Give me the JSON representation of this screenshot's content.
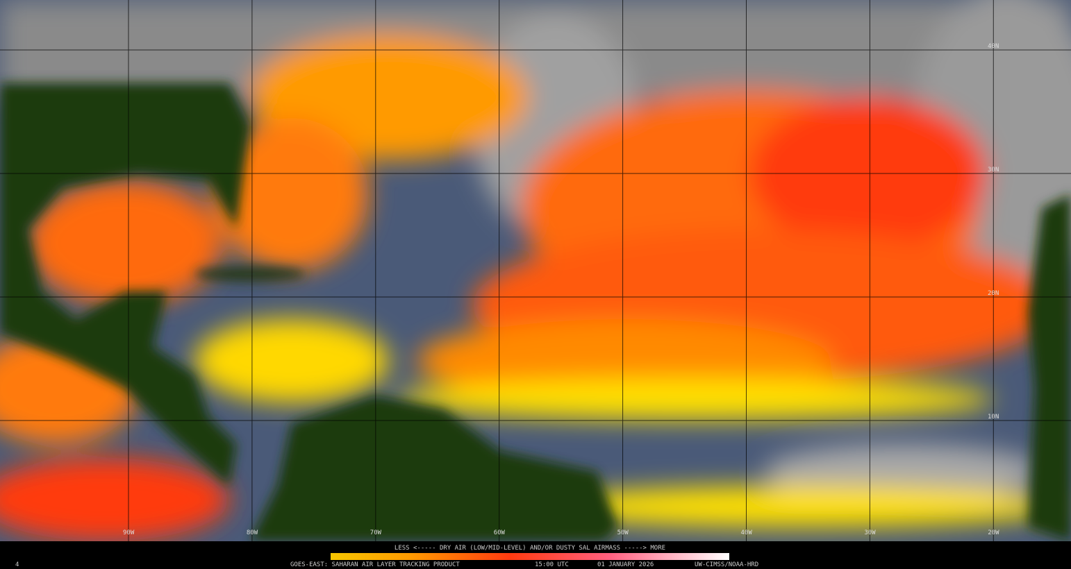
{
  "map": {
    "latitude_labels": [
      "40N",
      "30N",
      "20N",
      "10N"
    ],
    "longitude_labels": [
      "90W",
      "80W",
      "70W",
      "60W",
      "50W",
      "40W",
      "30W",
      "20W"
    ]
  },
  "legend": {
    "caption": "LESS <----- DRY AIR (LOW/MID-LEVEL) AND/OR DUSTY SAL AIRMASS -----> MORE"
  },
  "footer": {
    "frame": "4",
    "product": "GOES-EAST: SAHARAN AIR LAYER TRACKING PRODUCT",
    "time": "15:00 UTC",
    "date": "01 JANUARY 2026",
    "credit": "UW-CIMSS/NOAA-HRD"
  }
}
